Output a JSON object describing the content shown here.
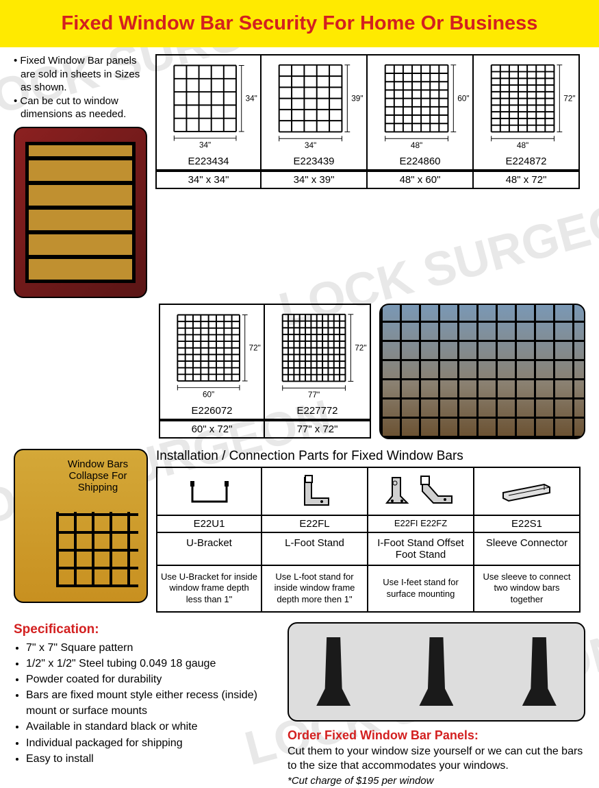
{
  "header": {
    "title": "Fixed Window Bar Security For Home Or Business"
  },
  "intro": {
    "bullets": [
      "Fixed Window Bar panels are sold in sheets in Sizes as shown.",
      "Can be cut to window dimensions as needed."
    ]
  },
  "sizes_row1": [
    {
      "w_label": "34\"",
      "h_label": "34\"",
      "code": "E223434",
      "dim": "34\" x 34\"",
      "gw": 5,
      "gh": 5
    },
    {
      "w_label": "34\"",
      "h_label": "39\"",
      "code": "E223439",
      "dim": "34\" x 39\"",
      "gw": 5,
      "gh": 6
    },
    {
      "w_label": "48\"",
      "h_label": "60\"",
      "code": "E224860",
      "dim": "48\" x 60\"",
      "gw": 7,
      "gh": 8
    },
    {
      "w_label": "48\"",
      "h_label": "72\"",
      "code": "E224872",
      "dim": "48\" x 72\"",
      "gw": 7,
      "gh": 10
    }
  ],
  "sizes_row2": [
    {
      "w_label": "60\"",
      "h_label": "72\"",
      "code": "E226072",
      "dim": "60\" x 72\"",
      "gw": 8,
      "gh": 10
    },
    {
      "w_label": "77\"",
      "h_label": "72\"",
      "code": "E227772",
      "dim": "77\" x 72\"",
      "gw": 11,
      "gh": 10
    }
  ],
  "collapse_caption": "Window Bars Collapse For Shipping",
  "parts": {
    "title": "Installation / Connection Parts for Fixed Window Bars",
    "items": [
      {
        "code": "E22U1",
        "name": "U-Bracket",
        "desc": "Use U-Bracket for inside window frame depth less than 1\""
      },
      {
        "code": "E22FL",
        "name": "L-Foot Stand",
        "desc": "Use L-foot stand for inside window frame depth more then 1\""
      },
      {
        "code": "E22FI    E22FZ",
        "name": "I-Foot Stand Offset Foot Stand",
        "desc": "Use I-feet stand for surface mounting"
      },
      {
        "code": "E22S1",
        "name": "Sleeve Connector",
        "desc": "Use sleeve to connect two window bars together"
      }
    ]
  },
  "spec": {
    "title": "Specification:",
    "items": [
      "7\" x 7\" Square pattern",
      "1/2\" x 1/2\" Steel tubing 0.049  18 gauge",
      "Powder coated for durability",
      "Bars are fixed mount style either recess (inside) mount or surface mounts",
      "Available in standard black or white",
      "Individual packaged for shipping",
      "Easy to install"
    ]
  },
  "order": {
    "title": "Order Fixed Window Bar Panels:",
    "text": "Cut them to your window size yourself or we can cut the bars to the size that accommodates your windows.",
    "note": "*Cut charge of $195 per window"
  },
  "watermark_text": "LOCK SURGEON",
  "colors": {
    "header_bg": "#ffea00",
    "accent_red": "#d32020",
    "border": "#000000"
  }
}
